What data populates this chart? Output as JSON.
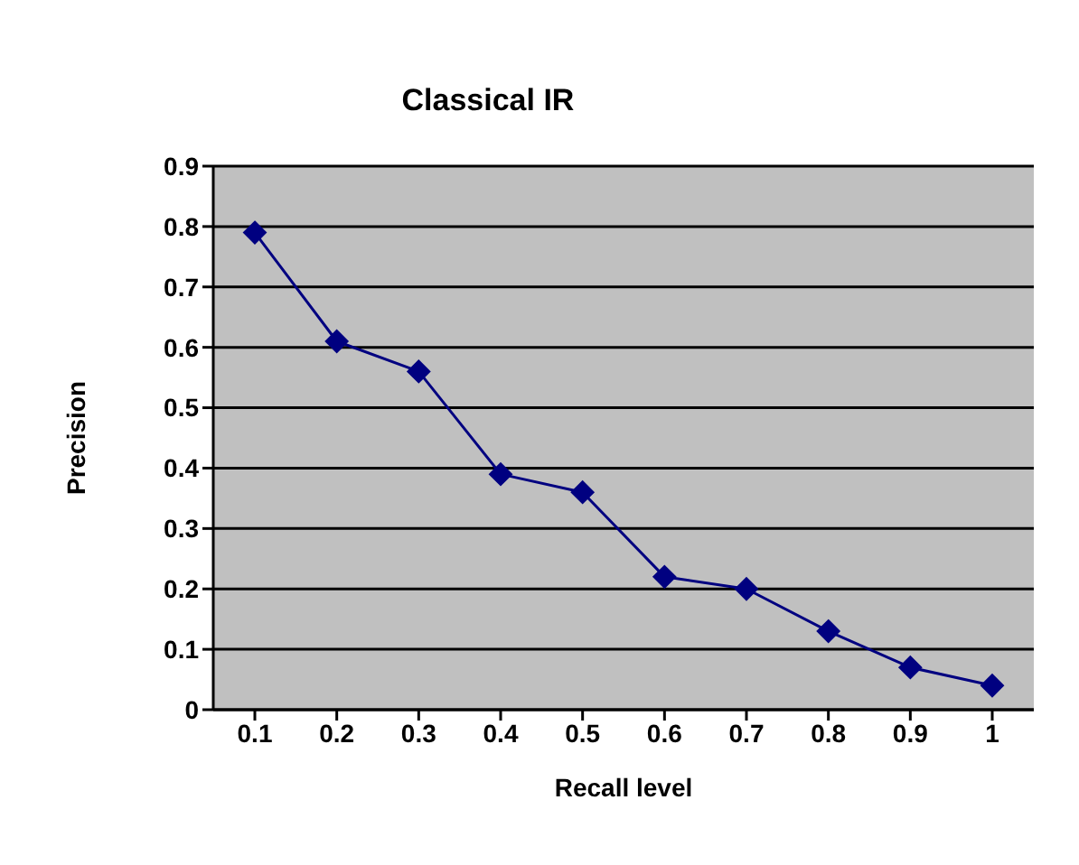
{
  "chart_data": {
    "type": "line",
    "title": "Classical IR",
    "xlabel": "Recall  level",
    "ylabel": "Precision",
    "categories": [
      "0.1",
      "0.2",
      "0.3",
      "0.4",
      "0.5",
      "0.6",
      "0.7",
      "0.8",
      "0.9",
      "1"
    ],
    "series": [
      {
        "color": "#000080",
        "values": [
          0.79,
          0.61,
          0.56,
          0.39,
          0.36,
          0.22,
          0.2,
          0.13,
          0.07,
          0.04
        ]
      }
    ],
    "ylim": [
      0,
      0.9
    ],
    "yticks": [
      0,
      0.1,
      0.2,
      0.3,
      0.4,
      0.5,
      0.6,
      0.7,
      0.8,
      0.9
    ],
    "grid": "y",
    "legend": false,
    "marker": "diamond",
    "line_style": "solid"
  }
}
